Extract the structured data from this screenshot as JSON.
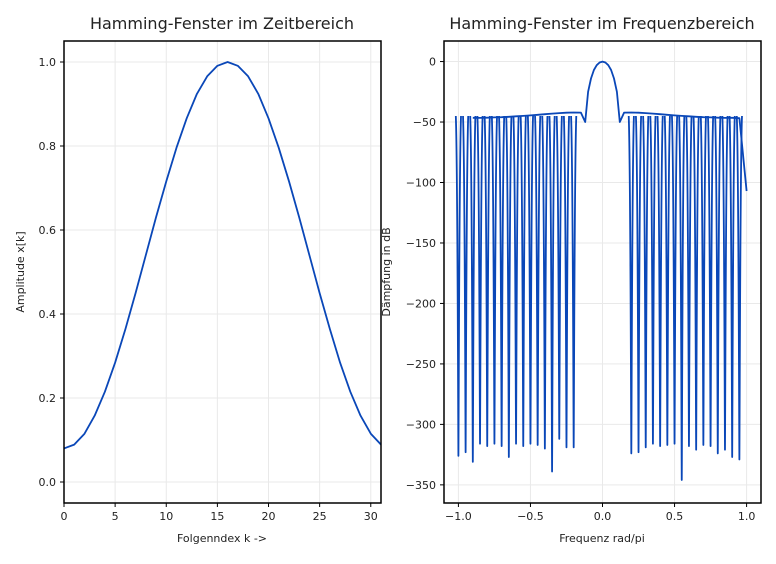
{
  "colors": {
    "line": "#0a47b8"
  },
  "chart_data": [
    {
      "type": "line",
      "title": "Hamming-Fenster im Zeitbereich",
      "xlabel": "Folgenndex k ->",
      "ylabel": "Amplitude x[k]",
      "xlim": [
        0,
        31
      ],
      "ylim": [
        -0.05,
        1.05
      ],
      "xticks": [
        0,
        5,
        10,
        15,
        20,
        25,
        30
      ],
      "xtick_labels": [
        "0",
        "5",
        "10",
        "15",
        "20",
        "25",
        "30"
      ],
      "yticks": [
        0.0,
        0.2,
        0.4,
        0.6,
        0.8,
        1.0
      ],
      "ytick_labels": [
        "0.0",
        "0.2",
        "0.4",
        "0.6",
        "0.8",
        "1.0"
      ],
      "grid": true,
      "series": [
        {
          "x": [
            0,
            1,
            2,
            3,
            4,
            5,
            6,
            7,
            8,
            9,
            10,
            11,
            12,
            13,
            14,
            15,
            16,
            17,
            18,
            19,
            20,
            21,
            22,
            23,
            24,
            25,
            26,
            27,
            28,
            29,
            30,
            31,
            32
          ],
          "y": [
            0.08,
            0.089,
            0.115,
            0.158,
            0.215,
            0.284,
            0.364,
            0.45,
            0.54,
            0.63,
            0.716,
            0.796,
            0.866,
            0.924,
            0.966,
            0.991,
            1.0,
            0.991,
            0.966,
            0.924,
            0.866,
            0.796,
            0.716,
            0.63,
            0.54,
            0.45,
            0.364,
            0.284,
            0.215,
            0.158,
            0.115,
            0.089,
            0.08
          ]
        }
      ]
    },
    {
      "type": "line",
      "title": "Hamming-Fenster im Frequenzbereich",
      "xlabel": "Frequenz rad/pi",
      "ylabel": "Dämpfung in dB",
      "xlim": [
        -1.1,
        1.1
      ],
      "ylim": [
        -365,
        17
      ],
      "xticks": [
        -1.0,
        -0.5,
        0.0,
        0.5,
        1.0
      ],
      "xtick_labels": [
        "−1.0",
        "−0.5",
        "0.0",
        "0.5",
        "1.0"
      ],
      "yticks": [
        0,
        -50,
        -100,
        -150,
        -200,
        -250,
        -300,
        -350
      ],
      "ytick_labels": [
        "0",
        "−50",
        "−100",
        "−150",
        "−200",
        "−250",
        "−300",
        "−350"
      ],
      "grid": true,
      "series": [
        {
          "x": [
            -0.9,
            -0.85,
            -0.8,
            -0.75,
            -0.7,
            -0.65,
            -0.6,
            -0.55,
            -0.5,
            -0.45,
            -0.4,
            -0.35,
            -0.3,
            -0.25,
            -0.2,
            -0.15,
            -0.12,
            -0.1,
            -0.08,
            -0.06,
            -0.04,
            -0.02,
            0.0,
            0.02,
            0.04,
            0.06,
            0.08,
            0.1,
            0.12,
            0.15,
            0.2,
            0.25,
            0.3,
            0.35,
            0.4,
            0.45,
            0.5,
            0.55,
            0.6,
            0.65,
            0.7,
            0.75,
            0.8,
            0.85,
            0.9,
            0.95,
            1.0
          ],
          "y": [
            -46.5,
            -46.6,
            -46.4,
            -46.2,
            -46,
            -45.7,
            -45.3,
            -44.9,
            -44.5,
            -44,
            -43.5,
            -43,
            -42.6,
            -42.3,
            -42.1,
            -42.2,
            -50,
            -25,
            -14,
            -7,
            -3,
            -0.8,
            0.0,
            -0.8,
            -3,
            -7,
            -14,
            -25,
            -50,
            -42.2,
            -42.1,
            -42.3,
            -42.6,
            -43,
            -43.5,
            -44,
            -44.5,
            -44.9,
            -45.3,
            -45.7,
            -46,
            -46.2,
            -46.4,
            -46.6,
            -46.5,
            -46.8,
            -107
          ]
        }
      ]
    }
  ]
}
